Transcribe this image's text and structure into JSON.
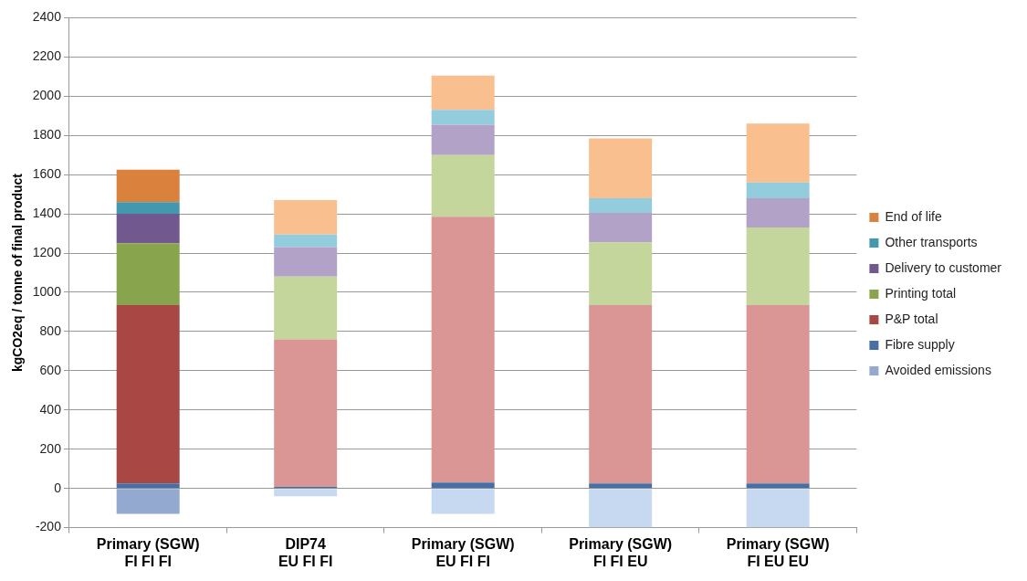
{
  "chart_data": {
    "type": "bar",
    "stacked": true,
    "ylabel": "kgCO2eq / tonne of final product",
    "categories": [
      "Primary (SGW)\nFI FI FI",
      "DIP74\nEU FI FI",
      "Primary (SGW)\nEU FI FI",
      "Primary (SGW)\nFI FI EU",
      "Primary (SGW)\nFI EU EU"
    ],
    "series": [
      {
        "name": "Avoided emissions",
        "color": "#94a9cf",
        "colors": [
          "#94a9cf",
          "#c6d9f0",
          "#c6d9f0",
          "#c6d9f0",
          "#c6d9f0"
        ],
        "values": [
          -130,
          -40,
          -130,
          -200,
          -200
        ]
      },
      {
        "name": "Fibre supply",
        "color": "#4670a5",
        "colors": [
          "#4670a5",
          "#4670a5",
          "#4670a5",
          "#4670a5",
          "#4670a5"
        ],
        "values": [
          25,
          8,
          30,
          25,
          25
        ]
      },
      {
        "name": "P&P total",
        "color": "#a84744",
        "colors": [
          "#a84744",
          "#d99694",
          "#d99694",
          "#d99694",
          "#d99694"
        ],
        "values": [
          910,
          752,
          1355,
          910,
          910
        ]
      },
      {
        "name": "Printing total",
        "color": "#88a44d",
        "colors": [
          "#88a44d",
          "#c4d69b",
          "#c4d69b",
          "#c4d69b",
          "#c4d69b"
        ],
        "values": [
          315,
          320,
          315,
          320,
          395
        ]
      },
      {
        "name": "Delivery to customer",
        "color": "#715990",
        "colors": [
          "#715990",
          "#b2a2c7",
          "#b2a2c7",
          "#b2a2c7",
          "#b2a2c7"
        ],
        "values": [
          150,
          150,
          155,
          150,
          150
        ]
      },
      {
        "name": "Other transports",
        "color": "#4298ae",
        "colors": [
          "#4298ae",
          "#93cddd",
          "#93cddd",
          "#93cddd",
          "#93cddd"
        ],
        "values": [
          60,
          65,
          75,
          75,
          80
        ]
      },
      {
        "name": "End of life",
        "color": "#d9813d",
        "colors": [
          "#d9813d",
          "#f9bf8f",
          "#f9bf8f",
          "#f9bf8f",
          "#f9bf8f"
        ],
        "values": [
          165,
          175,
          175,
          305,
          300
        ]
      }
    ],
    "ylim": [
      -200,
      2400
    ],
    "yticks": [
      -200,
      0,
      200,
      400,
      600,
      800,
      1000,
      1200,
      1400,
      1600,
      1800,
      2000,
      2200,
      2400
    ],
    "grid": "y",
    "legend": "right"
  }
}
